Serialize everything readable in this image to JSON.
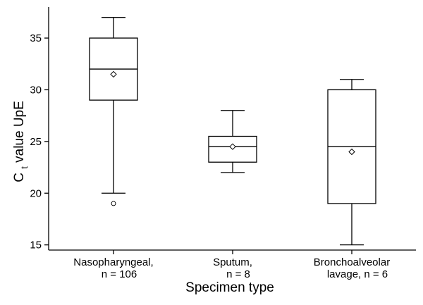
{
  "chart_data": {
    "type": "box",
    "xlabel": "Specimen type",
    "ylabel": {
      "main": "C",
      "subscript": "t",
      "rest": " value UpE"
    },
    "ylim": [
      14.5,
      38
    ],
    "yticks": [
      15,
      20,
      25,
      30,
      35
    ],
    "grid": false,
    "categories": [
      {
        "line1": "Nasopharyngeal,",
        "line2": "n = 106"
      },
      {
        "line1": "Sputum,",
        "line2": "n = 8"
      },
      {
        "line1": "Bronchoalveolar",
        "line2": "lavage, n = 6"
      }
    ],
    "boxes": [
      {
        "whisker_low": 20,
        "q1": 29,
        "median": 32,
        "q3": 35,
        "whisker_high": 37,
        "mean": 31.5,
        "outliers": [
          19
        ]
      },
      {
        "whisker_low": 22,
        "q1": 23,
        "median": 24.5,
        "q3": 25.5,
        "whisker_high": 28,
        "mean": 24.5,
        "outliers": []
      },
      {
        "whisker_low": 15,
        "q1": 19,
        "median": 24.5,
        "q3": 30,
        "whisker_high": 31,
        "mean": 24,
        "outliers": []
      }
    ]
  }
}
